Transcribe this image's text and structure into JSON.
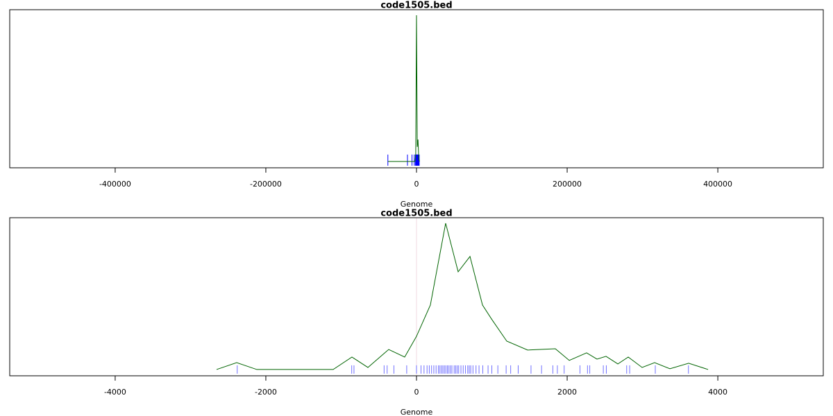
{
  "chart_data": [
    {
      "type": "line",
      "title": "code1505.bed",
      "x_label": "Genome",
      "x": [
        -38000,
        -2000,
        -1000,
        0,
        1000,
        2000,
        3000,
        4000
      ],
      "values": [
        0,
        0,
        0.05,
        1,
        0.1,
        0.15,
        0.02,
        0
      ],
      "color": "#006400",
      "rug_x": [
        -38000,
        -12000,
        -6000,
        -3000,
        -1500,
        -800,
        -400,
        0,
        300,
        600,
        900,
        1200,
        1600,
        2000,
        2500,
        3000,
        3600
      ],
      "rug_color": "#0000ff",
      "xlim": [
        -540000,
        540000
      ],
      "ylim": [
        -0.043,
        1.038
      ],
      "xticks": [
        -400000,
        -200000,
        0,
        200000,
        400000
      ]
    },
    {
      "type": "line",
      "title": "code1505.bed",
      "x_label": "Genome",
      "x": [
        -2654,
        -2387,
        -2120,
        -1106,
        -857,
        -645,
        -369,
        -157,
        0,
        184,
        387,
        553,
        710,
        876,
        995,
        1198,
        1475,
        1843,
        2028,
        2258,
        2396,
        2516,
        2673,
        2811,
        2995,
        3161,
        3364,
        3613,
        3871
      ],
      "values": [
        0,
        0.047,
        0,
        0,
        0.085,
        0.014,
        0.137,
        0.085,
        0.227,
        0.441,
        1.0,
        0.668,
        0.773,
        0.441,
        0.346,
        0.194,
        0.133,
        0.142,
        0.062,
        0.114,
        0.071,
        0.09,
        0.038,
        0.085,
        0.014,
        0.047,
        0.005,
        0.043,
        0
      ],
      "color": "#006400",
      "rug_x": [
        -2380,
        -860,
        -830,
        -430,
        -390,
        -300,
        -130,
        0,
        60,
        100,
        140,
        170,
        200,
        230,
        260,
        290,
        310,
        330,
        350,
        370,
        390,
        410,
        430,
        450,
        470,
        500,
        520,
        540,
        560,
        590,
        620,
        650,
        680,
        700,
        720,
        750,
        790,
        830,
        880,
        950,
        1000,
        1080,
        1190,
        1250,
        1350,
        1520,
        1660,
        1810,
        1870,
        1960,
        2170,
        2270,
        2300,
        2480,
        2520,
        2790,
        2830,
        3170,
        3610
      ],
      "rug_color": "#7070ff",
      "xlim": [
        -5400,
        5400
      ],
      "ylim": [
        -0.043,
        1.038
      ],
      "xticks": [
        -4000,
        -2000,
        0,
        2000,
        4000
      ]
    }
  ]
}
